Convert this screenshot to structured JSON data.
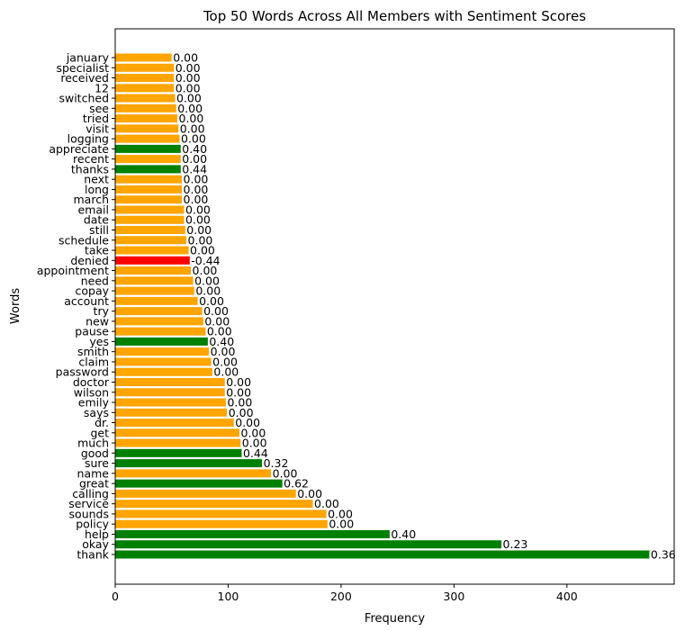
{
  "chart_data": {
    "type": "bar",
    "orientation": "horizontal",
    "title": "Top 50 Words Across All Members with Sentiment Scores",
    "xlabel": "Frequency",
    "ylabel": "Words",
    "xlim": [
      0,
      495
    ],
    "xticks": [
      0,
      100,
      200,
      300,
      400
    ],
    "grid": false,
    "legend": "none",
    "colors": {
      "positive": "#008000",
      "neutral": "#ffa500",
      "negative": "#ff0000"
    },
    "bars": [
      {
        "word": "thank",
        "value": 473,
        "sentiment": "0.36"
      },
      {
        "word": "okay",
        "value": 342,
        "sentiment": "0.23"
      },
      {
        "word": "help",
        "value": 243,
        "sentiment": "0.40"
      },
      {
        "word": "policy",
        "value": 188,
        "sentiment": "0.00"
      },
      {
        "word": "sounds",
        "value": 187,
        "sentiment": "0.00"
      },
      {
        "word": "service",
        "value": 175,
        "sentiment": "0.00"
      },
      {
        "word": "calling",
        "value": 160,
        "sentiment": "0.00"
      },
      {
        "word": "great",
        "value": 148,
        "sentiment": "0.62"
      },
      {
        "word": "name",
        "value": 138,
        "sentiment": "0.00"
      },
      {
        "word": "sure",
        "value": 130,
        "sentiment": "0.32"
      },
      {
        "word": "good",
        "value": 112,
        "sentiment": "0.44"
      },
      {
        "word": "much",
        "value": 111,
        "sentiment": "0.00"
      },
      {
        "word": "get",
        "value": 110,
        "sentiment": "0.00"
      },
      {
        "word": "dr.",
        "value": 105,
        "sentiment": "0.00"
      },
      {
        "word": "says",
        "value": 99,
        "sentiment": "0.00"
      },
      {
        "word": "emily",
        "value": 98,
        "sentiment": "0.00"
      },
      {
        "word": "wilson",
        "value": 97,
        "sentiment": "0.00"
      },
      {
        "word": "doctor",
        "value": 97,
        "sentiment": "0.00"
      },
      {
        "word": "password",
        "value": 86,
        "sentiment": "0.00"
      },
      {
        "word": "claim",
        "value": 85,
        "sentiment": "0.00"
      },
      {
        "word": "smith",
        "value": 83,
        "sentiment": "0.00"
      },
      {
        "word": "yes",
        "value": 82,
        "sentiment": "0.40"
      },
      {
        "word": "pause",
        "value": 80,
        "sentiment": "0.00"
      },
      {
        "word": "new",
        "value": 78,
        "sentiment": "0.00"
      },
      {
        "word": "try",
        "value": 77,
        "sentiment": "0.00"
      },
      {
        "word": "account",
        "value": 73,
        "sentiment": "0.00"
      },
      {
        "word": "copay",
        "value": 70,
        "sentiment": "0.00"
      },
      {
        "word": "need",
        "value": 69,
        "sentiment": "0.00"
      },
      {
        "word": "appointment",
        "value": 67,
        "sentiment": "0.00"
      },
      {
        "word": "denied",
        "value": 66,
        "sentiment": "-0.44"
      },
      {
        "word": "take",
        "value": 65,
        "sentiment": "0.00"
      },
      {
        "word": "schedule",
        "value": 63,
        "sentiment": "0.00"
      },
      {
        "word": "still",
        "value": 62,
        "sentiment": "0.00"
      },
      {
        "word": "date",
        "value": 61,
        "sentiment": "0.00"
      },
      {
        "word": "email",
        "value": 61,
        "sentiment": "0.00"
      },
      {
        "word": "march",
        "value": 59,
        "sentiment": "0.00"
      },
      {
        "word": "long",
        "value": 59,
        "sentiment": "0.00"
      },
      {
        "word": "next",
        "value": 59,
        "sentiment": "0.00"
      },
      {
        "word": "thanks",
        "value": 58,
        "sentiment": "0.44"
      },
      {
        "word": "recent",
        "value": 58,
        "sentiment": "0.00"
      },
      {
        "word": "appreciate",
        "value": 58,
        "sentiment": "0.40"
      },
      {
        "word": "logging",
        "value": 57,
        "sentiment": "0.00"
      },
      {
        "word": "visit",
        "value": 56,
        "sentiment": "0.00"
      },
      {
        "word": "tried",
        "value": 55,
        "sentiment": "0.00"
      },
      {
        "word": "see",
        "value": 54,
        "sentiment": "0.00"
      },
      {
        "word": "switched",
        "value": 53,
        "sentiment": "0.00"
      },
      {
        "word": "12",
        "value": 52,
        "sentiment": "0.00"
      },
      {
        "word": "received",
        "value": 52,
        "sentiment": "0.00"
      },
      {
        "word": "specialist",
        "value": 52,
        "sentiment": "0.00"
      },
      {
        "word": "january",
        "value": 50,
        "sentiment": "0.00"
      }
    ]
  }
}
